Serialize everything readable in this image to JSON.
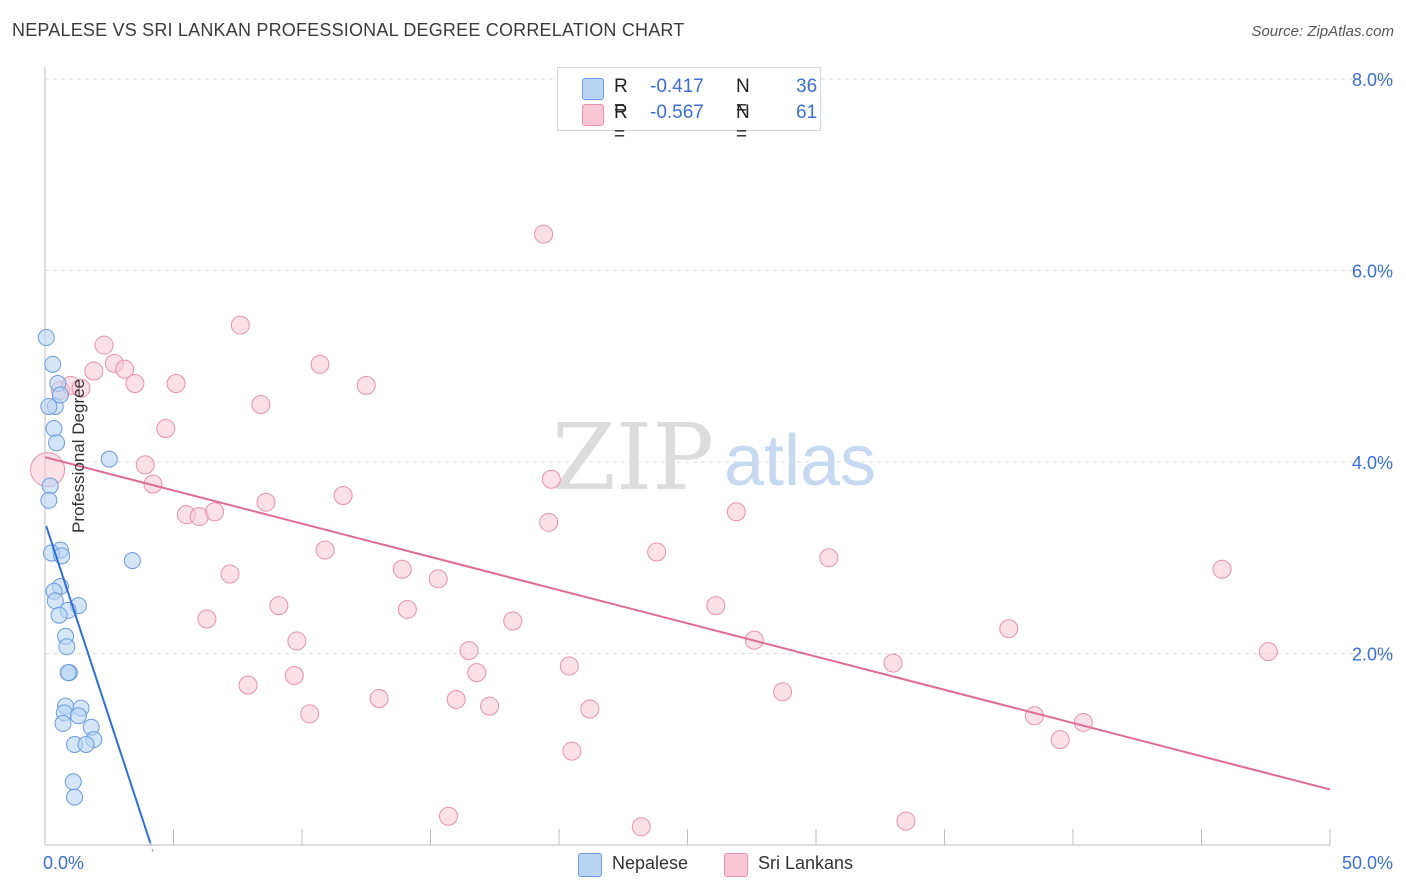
{
  "title": "NEPALESE VS SRI LANKAN PROFESSIONAL DEGREE CORRELATION CHART",
  "source": "Source: ZipAtlas.com",
  "watermark": {
    "zip": "ZIP",
    "atlas": "atlas"
  },
  "legend_top": [
    {
      "r_label": "R =",
      "r_value": "-0.417",
      "n_label": "N =",
      "n_value": "36"
    },
    {
      "r_label": "R =",
      "r_value": "-0.567",
      "n_label": "N =",
      "n_value": "61"
    }
  ],
  "legend_bottom": [
    "Nepalese",
    "Sri Lankans"
  ],
  "chart_data": {
    "type": "scatter",
    "title": "NEPALESE VS SRI LANKAN PROFESSIONAL DEGREE CORRELATION CHART",
    "xlabel": "",
    "ylabel": "Professional Degree",
    "xlim": [
      0,
      50
    ],
    "ylim": [
      0,
      8.0
    ],
    "x_tick_labels": [
      "0.0%",
      "50.0%"
    ],
    "y_ticks": [
      2.0,
      4.0,
      6.0,
      8.0
    ],
    "y_tick_labels": [
      "2.0%",
      "4.0%",
      "6.0%",
      "8.0%"
    ],
    "grid": true,
    "legend_position": "top-center",
    "colors": {
      "nepalese_fill": "#b9d3f3",
      "nepalese_stroke": "#6a9be0",
      "nepalese_line": "#2f6fd6",
      "srilankan_fill": "#f8c6d5",
      "srilankan_stroke": "#e890ad",
      "srilankan_line": "#e06b96",
      "tick_label": "#3b6fd0"
    },
    "series": [
      {
        "name": "Nepalese",
        "r": -0.417,
        "n": 36,
        "trend": {
          "x": [
            0.05,
            4.1
          ],
          "y": [
            3.33,
            0.02
          ]
        },
        "points": [
          [
            0.05,
            5.3
          ],
          [
            0.3,
            5.02
          ],
          [
            0.5,
            4.82
          ],
          [
            0.4,
            4.58
          ],
          [
            0.15,
            4.58
          ],
          [
            0.6,
            4.7
          ],
          [
            0.35,
            4.35
          ],
          [
            0.45,
            4.2
          ],
          [
            2.5,
            4.03
          ],
          [
            0.2,
            3.75
          ],
          [
            0.15,
            3.6
          ],
          [
            0.6,
            3.08
          ],
          [
            0.25,
            3.05
          ],
          [
            0.65,
            3.02
          ],
          [
            3.4,
            2.97
          ],
          [
            0.6,
            2.7
          ],
          [
            0.35,
            2.65
          ],
          [
            0.4,
            2.55
          ],
          [
            1.3,
            2.5
          ],
          [
            0.9,
            2.45
          ],
          [
            0.55,
            2.4
          ],
          [
            0.8,
            2.18
          ],
          [
            0.85,
            2.07
          ],
          [
            0.95,
            1.8
          ],
          [
            0.9,
            1.8
          ],
          [
            0.8,
            1.45
          ],
          [
            1.4,
            1.43
          ],
          [
            0.75,
            1.38
          ],
          [
            1.3,
            1.35
          ],
          [
            0.7,
            1.27
          ],
          [
            1.8,
            1.23
          ],
          [
            1.9,
            1.1
          ],
          [
            1.15,
            1.05
          ],
          [
            1.6,
            1.05
          ],
          [
            1.1,
            0.66
          ],
          [
            1.15,
            0.5
          ]
        ]
      },
      {
        "name": "Sri Lankans",
        "r": -0.567,
        "n": 61,
        "trend": {
          "x": [
            0,
            50
          ],
          "y": [
            4.05,
            0.58
          ]
        },
        "points": [
          [
            0.1,
            3.92
          ],
          [
            0.6,
            4.75
          ],
          [
            1.0,
            4.8
          ],
          [
            1.4,
            4.77
          ],
          [
            2.3,
            5.22
          ],
          [
            2.7,
            5.03
          ],
          [
            3.1,
            4.97
          ],
          [
            1.9,
            4.95
          ],
          [
            3.5,
            4.82
          ],
          [
            5.1,
            4.82
          ],
          [
            7.6,
            5.43
          ],
          [
            10.7,
            5.02
          ],
          [
            12.5,
            4.8
          ],
          [
            8.4,
            4.6
          ],
          [
            4.7,
            4.35
          ],
          [
            3.9,
            3.97
          ],
          [
            4.2,
            3.77
          ],
          [
            5.5,
            3.45
          ],
          [
            6.0,
            3.43
          ],
          [
            6.6,
            3.48
          ],
          [
            8.6,
            3.58
          ],
          [
            11.6,
            3.65
          ],
          [
            19.7,
            3.82
          ],
          [
            19.6,
            3.37
          ],
          [
            26.9,
            3.48
          ],
          [
            7.2,
            2.83
          ],
          [
            10.9,
            3.08
          ],
          [
            13.9,
            2.88
          ],
          [
            15.3,
            2.78
          ],
          [
            23.8,
            3.06
          ],
          [
            30.5,
            3.0
          ],
          [
            45.8,
            2.88
          ],
          [
            9.1,
            2.5
          ],
          [
            6.3,
            2.36
          ],
          [
            14.1,
            2.46
          ],
          [
            18.2,
            2.34
          ],
          [
            26.1,
            2.5
          ],
          [
            9.8,
            2.13
          ],
          [
            27.6,
            2.14
          ],
          [
            37.5,
            2.26
          ],
          [
            16.5,
            2.03
          ],
          [
            47.6,
            2.02
          ],
          [
            16.8,
            1.8
          ],
          [
            20.4,
            1.87
          ],
          [
            33.0,
            1.9
          ],
          [
            7.9,
            1.67
          ],
          [
            9.7,
            1.77
          ],
          [
            13.0,
            1.53
          ],
          [
            16.0,
            1.52
          ],
          [
            17.3,
            1.45
          ],
          [
            21.2,
            1.42
          ],
          [
            28.7,
            1.6
          ],
          [
            10.3,
            1.37
          ],
          [
            38.5,
            1.35
          ],
          [
            40.4,
            1.28
          ],
          [
            39.5,
            1.1
          ],
          [
            20.5,
            0.98
          ],
          [
            15.7,
            0.3
          ],
          [
            23.2,
            0.19
          ],
          [
            33.5,
            0.25
          ],
          [
            19.4,
            6.38
          ]
        ]
      }
    ]
  }
}
